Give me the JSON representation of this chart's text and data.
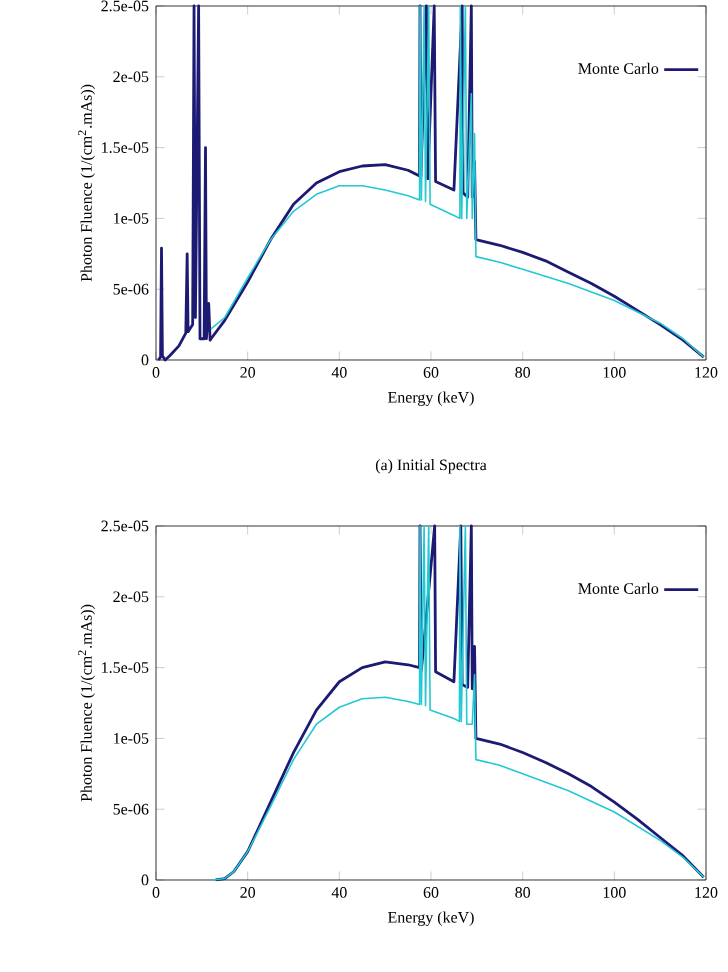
{
  "chart_data": [
    {
      "type": "line",
      "xlabel": "Energy (keV)",
      "ylabel": "Photon Fluence (1/(cm$^{2}$.mAs))",
      "annotations": [
        "(a)  Initial Spectra"
      ],
      "xlim": [
        0,
        120
      ],
      "xticks": [
        0,
        20,
        40,
        60,
        80,
        100,
        120
      ],
      "ylim": [
        0,
        2.5e-05
      ],
      "yticks": [
        0,
        {
          "value": 5e-06,
          "label": "5e-06"
        },
        {
          "value": 1e-05,
          "label": "1e-05"
        },
        {
          "value": 1.5e-05,
          "label": "1.5e-05"
        },
        {
          "value": 2e-05,
          "label": "2e-05"
        },
        {
          "value": 2.5e-05,
          "label": "2.5e-05"
        }
      ],
      "legend": "top right",
      "grid": false,
      "marker": "none",
      "line_style": "solid",
      "series": [
        {
          "name": "Monte Carlo",
          "color": "#1c1a72",
          "x": [
            0.5,
            1,
            1.2,
            1.4,
            2,
            3,
            5,
            6.5,
            6.8,
            7,
            8,
            8.3,
            8.6,
            9.3,
            9.6,
            10.5,
            10.8,
            11,
            11.5,
            11.8,
            12,
            15,
            20,
            25,
            30,
            35,
            40,
            45,
            50,
            55,
            57.5,
            57.6,
            57.8,
            59,
            59.3,
            60.7,
            61,
            65,
            66.8,
            67,
            68,
            68.8,
            69,
            69.5,
            69.8,
            75,
            80,
            85,
            90,
            95,
            100,
            105,
            110,
            115,
            119.5
          ],
          "values": [
            0,
            2e-07,
            7.9e-06,
            3e-07,
            0,
            3e-07,
            1e-06,
            1.9e-06,
            7.5e-06,
            2e-06,
            2.5e-06,
            2.5e-05,
            3e-06,
            2.5e-05,
            1.5e-06,
            1.5e-06,
            1.5e-05,
            1.5e-06,
            4e-06,
            1.4e-06,
            1.5e-06,
            2.8e-06,
            5.5e-06,
            8.5e-06,
            1.1e-05,
            1.25e-05,
            1.33e-05,
            1.37e-05,
            1.38e-05,
            1.34e-05,
            1.3e-05,
            2.5e-05,
            1.3e-05,
            2.5e-05,
            1.28e-05,
            2.5e-05,
            1.26e-05,
            1.2e-05,
            2.5e-05,
            1.18e-05,
            1.15e-05,
            2.5e-05,
            1.15e-05,
            1.4e-05,
            8.5e-06,
            8.1e-06,
            7.6e-06,
            7e-06,
            6.2e-06,
            5.4e-06,
            4.5e-06,
            3.5e-06,
            2.5e-06,
            1.4e-06,
            2e-07
          ]
        },
        {
          "color": "#22c8d2",
          "x": [
            12,
            15,
            20,
            25,
            30,
            35,
            40,
            45,
            50,
            55,
            57.5,
            57.6,
            57.9,
            58.5,
            58.8,
            59.5,
            59.8,
            65,
            66.3,
            66.4,
            66.7,
            67.5,
            67.8,
            68.8,
            69,
            69.5,
            69.8,
            75,
            80,
            90,
            100,
            110,
            115,
            119.5
          ],
          "values": [
            2.2e-06,
            3e-06,
            5.8e-06,
            8.5e-06,
            1.05e-05,
            1.17e-05,
            1.23e-05,
            1.23e-05,
            1.2e-05,
            1.16e-05,
            1.13e-05,
            2.5e-05,
            1.13e-05,
            2.5e-05,
            1.12e-05,
            2.5e-05,
            1.1e-05,
            1.02e-05,
            1e-05,
            2.5e-05,
            1e-05,
            2.5e-05,
            1e-05,
            1.88e-05,
            1e-05,
            1.6e-05,
            7.3e-06,
            6.9e-06,
            6.4e-06,
            5.4e-06,
            4.2e-06,
            2.6e-06,
            1.5e-06,
            2e-07
          ]
        }
      ]
    },
    {
      "type": "line",
      "xlabel": "Energy (keV)",
      "ylabel": "Photon Fluence (1/(cm$^{2}$.mAs))",
      "xlim": [
        0,
        120
      ],
      "xticks": [
        0,
        20,
        40,
        60,
        80,
        100,
        120
      ],
      "ylim": [
        0,
        2.5e-05
      ],
      "yticks": [
        0,
        {
          "value": 5e-06,
          "label": "5e-06"
        },
        {
          "value": 1e-05,
          "label": "1e-05"
        },
        {
          "value": 1.5e-05,
          "label": "1.5e-05"
        },
        {
          "value": 2e-05,
          "label": "2e-05"
        },
        {
          "value": 2.5e-05,
          "label": "2.5e-05"
        }
      ],
      "legend": "top right",
      "grid": false,
      "marker": "none",
      "line_style": "solid",
      "series": [
        {
          "name": "Monte Carlo",
          "color": "#1c1a72",
          "x": [
            13,
            15,
            17,
            20,
            25,
            30,
            35,
            40,
            45,
            50,
            55,
            57.5,
            57.6,
            57.9,
            60.8,
            61,
            65,
            66.5,
            66.8,
            68,
            68.8,
            69,
            69.5,
            69.8,
            75,
            80,
            85,
            90,
            95,
            100,
            105,
            110,
            115,
            119.5
          ],
          "values": [
            0,
            1e-07,
            6e-07,
            2e-06,
            5.5e-06,
            9e-06,
            1.2e-05,
            1.4e-05,
            1.5e-05,
            1.54e-05,
            1.52e-05,
            1.5e-05,
            2.5e-05,
            1.48e-05,
            2.5e-05,
            1.47e-05,
            1.4e-05,
            2.5e-05,
            1.38e-05,
            1.36e-05,
            2.5e-05,
            1.35e-05,
            1.65e-05,
            1e-05,
            9.6e-06,
            9e-06,
            8.3e-06,
            7.5e-06,
            6.6e-06,
            5.5e-06,
            4.3e-06,
            3e-06,
            1.7e-06,
            2e-07
          ]
        },
        {
          "color": "#22c8d2",
          "x": [
            12.5,
            15,
            17,
            20,
            25,
            30,
            35,
            40,
            45,
            50,
            55,
            57.5,
            57.6,
            57.9,
            58.5,
            58.8,
            59.5,
            59.8,
            65,
            66.2,
            66.3,
            66.6,
            67.5,
            67.8,
            69,
            69.5,
            69.8,
            75,
            80,
            90,
            100,
            110,
            115,
            119.5
          ],
          "values": [
            0,
            1e-07,
            6e-07,
            2e-06,
            5.2e-06,
            8.5e-06,
            1.1e-05,
            1.22e-05,
            1.28e-05,
            1.29e-05,
            1.26e-05,
            1.24e-05,
            2.5e-05,
            1.24e-05,
            2.5e-05,
            1.23e-05,
            2.5e-05,
            1.2e-05,
            1.14e-05,
            1.12e-05,
            2.5e-05,
            1.12e-05,
            2.5e-05,
            1.1e-05,
            1.1e-05,
            1.45e-05,
            8.5e-06,
            8.1e-06,
            7.5e-06,
            6.3e-06,
            4.8e-06,
            2.8e-06,
            1.6e-06,
            2e-07
          ]
        }
      ]
    }
  ]
}
